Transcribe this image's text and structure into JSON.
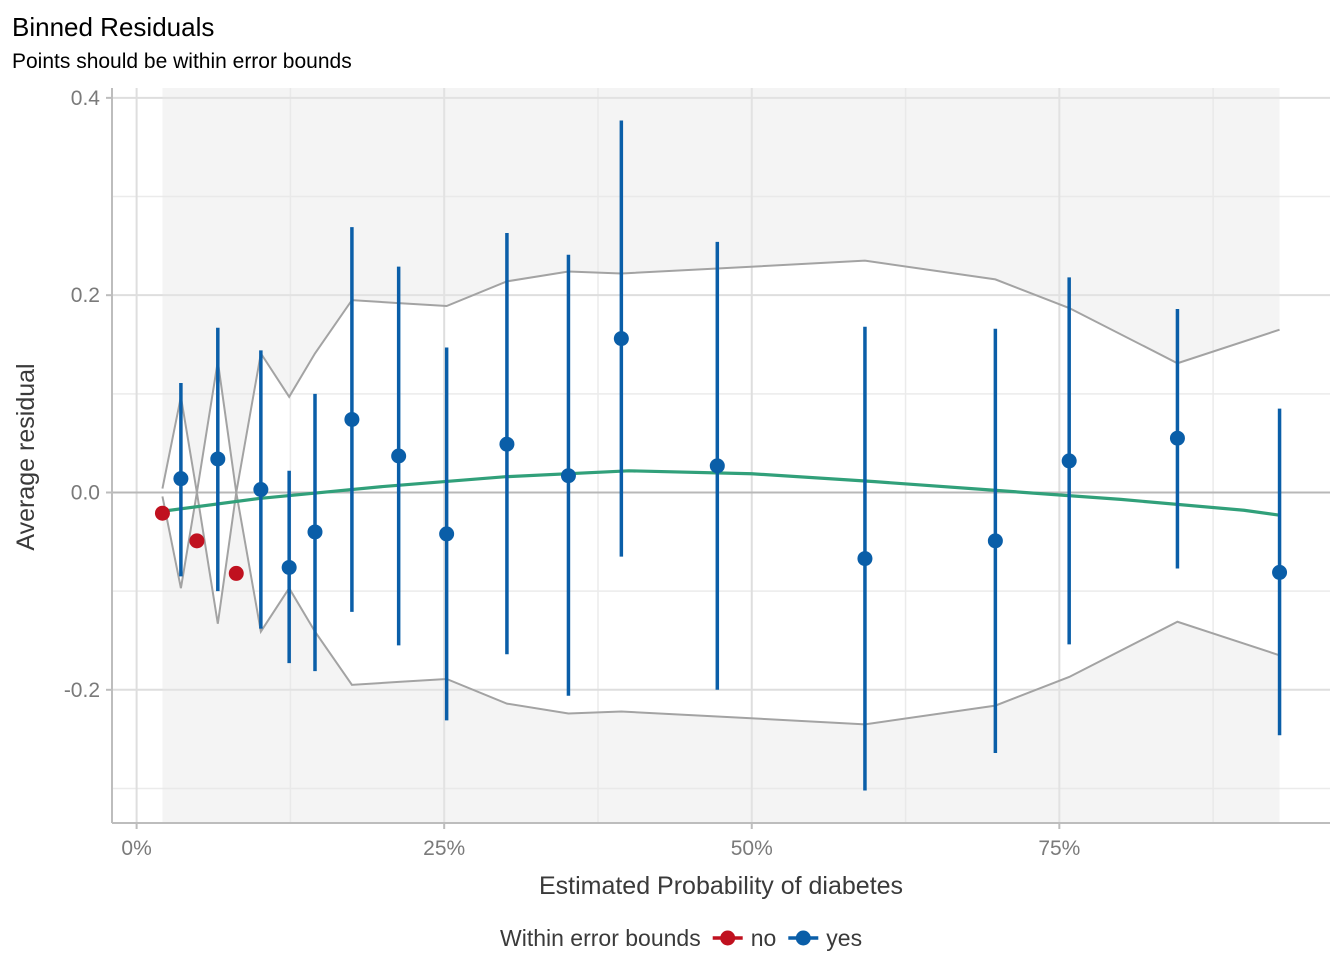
{
  "chart_data": {
    "type": "scatter",
    "title": "Binned Residuals",
    "subtitle": "Points should be within error bounds",
    "xlabel": "Estimated Probability of diabetes",
    "ylabel": "Average residual",
    "xlim": [
      -0.02,
      0.97
    ],
    "ylim": [
      -0.335,
      0.41
    ],
    "x_ticks": [
      {
        "value": 0.0,
        "label": "0%"
      },
      {
        "value": 0.25,
        "label": "25%"
      },
      {
        "value": 0.5,
        "label": "50%"
      },
      {
        "value": 0.75,
        "label": "75%"
      }
    ],
    "y_ticks": [
      {
        "value": -0.2,
        "label": "-0.2"
      },
      {
        "value": 0.0,
        "label": "0.0"
      },
      {
        "value": 0.2,
        "label": "0.2"
      },
      {
        "value": 0.4,
        "label": "0.4"
      }
    ],
    "grid": true,
    "legend": {
      "title": "Within error bounds",
      "position": "bottom",
      "entries": [
        {
          "label": "no",
          "color": "#c0111f"
        },
        {
          "label": "yes",
          "color": "#0a5ea8"
        }
      ]
    },
    "colors": {
      "no": "#c0111f",
      "yes": "#0a5ea8",
      "bounds": "#a3a3a3",
      "smooth": "#31a07a",
      "shade": "#f4f4f4"
    },
    "points": [
      {
        "x": 0.021,
        "y": -0.021,
        "lo": null,
        "hi": null,
        "group": "no"
      },
      {
        "x": 0.036,
        "y": 0.014,
        "lo": -0.085,
        "hi": 0.111,
        "group": "yes"
      },
      {
        "x": 0.049,
        "y": -0.049,
        "lo": null,
        "hi": null,
        "group": "no"
      },
      {
        "x": 0.066,
        "y": 0.034,
        "lo": -0.1,
        "hi": 0.167,
        "group": "yes"
      },
      {
        "x": 0.081,
        "y": -0.082,
        "lo": null,
        "hi": null,
        "group": "no"
      },
      {
        "x": 0.101,
        "y": 0.003,
        "lo": -0.138,
        "hi": 0.144,
        "group": "yes"
      },
      {
        "x": 0.124,
        "y": -0.076,
        "lo": -0.173,
        "hi": 0.022,
        "group": "yes"
      },
      {
        "x": 0.145,
        "y": -0.04,
        "lo": -0.181,
        "hi": 0.1,
        "group": "yes"
      },
      {
        "x": 0.175,
        "y": 0.074,
        "lo": -0.121,
        "hi": 0.269,
        "group": "yes"
      },
      {
        "x": 0.213,
        "y": 0.037,
        "lo": -0.155,
        "hi": 0.229,
        "group": "yes"
      },
      {
        "x": 0.252,
        "y": -0.042,
        "lo": -0.231,
        "hi": 0.147,
        "group": "yes"
      },
      {
        "x": 0.301,
        "y": 0.049,
        "lo": -0.164,
        "hi": 0.263,
        "group": "yes"
      },
      {
        "x": 0.351,
        "y": 0.017,
        "lo": -0.206,
        "hi": 0.241,
        "group": "yes"
      },
      {
        "x": 0.394,
        "y": 0.156,
        "lo": -0.065,
        "hi": 0.377,
        "group": "yes"
      },
      {
        "x": 0.472,
        "y": 0.027,
        "lo": -0.2,
        "hi": 0.254,
        "group": "yes"
      },
      {
        "x": 0.592,
        "y": -0.067,
        "lo": -0.302,
        "hi": 0.168,
        "group": "yes"
      },
      {
        "x": 0.698,
        "y": -0.049,
        "lo": -0.264,
        "hi": 0.166,
        "group": "yes"
      },
      {
        "x": 0.758,
        "y": 0.032,
        "lo": -0.154,
        "hi": 0.218,
        "group": "yes"
      },
      {
        "x": 0.846,
        "y": 0.055,
        "lo": -0.077,
        "hi": 0.186,
        "group": "yes"
      },
      {
        "x": 0.929,
        "y": -0.081,
        "lo": -0.246,
        "hi": 0.085,
        "group": "yes"
      }
    ],
    "bounds": [
      {
        "x": 0.021,
        "bound": 0.004
      },
      {
        "x": 0.036,
        "bound": 0.097
      },
      {
        "x": 0.049,
        "bound": 0.0
      },
      {
        "x": 0.066,
        "bound": 0.133
      },
      {
        "x": 0.081,
        "bound": 0.0
      },
      {
        "x": 0.101,
        "bound": 0.141
      },
      {
        "x": 0.124,
        "bound": 0.097
      },
      {
        "x": 0.145,
        "bound": 0.141
      },
      {
        "x": 0.175,
        "bound": 0.195
      },
      {
        "x": 0.213,
        "bound": 0.192
      },
      {
        "x": 0.252,
        "bound": 0.189
      },
      {
        "x": 0.301,
        "bound": 0.214
      },
      {
        "x": 0.351,
        "bound": 0.224
      },
      {
        "x": 0.394,
        "bound": 0.222
      },
      {
        "x": 0.472,
        "bound": 0.227
      },
      {
        "x": 0.592,
        "bound": 0.235
      },
      {
        "x": 0.698,
        "bound": 0.216
      },
      {
        "x": 0.758,
        "bound": 0.187
      },
      {
        "x": 0.846,
        "bound": 0.131
      },
      {
        "x": 0.929,
        "bound": 0.165
      }
    ],
    "smooth": [
      {
        "x": 0.021,
        "y": -0.019
      },
      {
        "x": 0.1,
        "y": -0.006
      },
      {
        "x": 0.2,
        "y": 0.006
      },
      {
        "x": 0.3,
        "y": 0.016
      },
      {
        "x": 0.4,
        "y": 0.022
      },
      {
        "x": 0.5,
        "y": 0.019
      },
      {
        "x": 0.6,
        "y": 0.011
      },
      {
        "x": 0.7,
        "y": 0.002
      },
      {
        "x": 0.8,
        "y": -0.007
      },
      {
        "x": 0.9,
        "y": -0.018
      },
      {
        "x": 0.929,
        "y": -0.023
      }
    ],
    "shade_range": [
      0.021,
      0.929
    ]
  }
}
